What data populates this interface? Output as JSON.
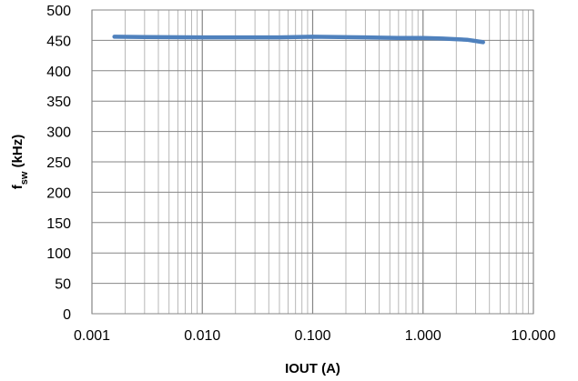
{
  "chart_data": {
    "type": "line",
    "title": "",
    "xlabel": "IOUT (A)",
    "ylabel": {
      "main": "f",
      "subscript": "sw",
      "unit": " (kHz)"
    },
    "x_scale": "log",
    "xlim": [
      0.001,
      10
    ],
    "ylim": [
      0,
      500
    ],
    "x_ticks": [
      0.001,
      0.01,
      0.1,
      1,
      10
    ],
    "x_tick_labels": [
      "0.001",
      "0.010",
      "0.100",
      "1.000",
      "10.000"
    ],
    "y_ticks": [
      0,
      50,
      100,
      150,
      200,
      250,
      300,
      350,
      400,
      450,
      500
    ],
    "y_tick_labels": [
      "0",
      "50",
      "100",
      "150",
      "200",
      "250",
      "300",
      "350",
      "400",
      "450",
      "500"
    ],
    "grid": true,
    "legend": "none",
    "series": [
      {
        "color": "#4f81bd",
        "x": [
          0.0016,
          0.003,
          0.01,
          0.05,
          0.1,
          0.3,
          0.6,
          1.0,
          1.5,
          2.0,
          2.5,
          3.0,
          3.5
        ],
        "y": [
          456,
          455.5,
          455,
          455,
          456,
          455,
          454,
          454,
          453,
          452,
          451,
          449,
          447
        ]
      }
    ]
  }
}
